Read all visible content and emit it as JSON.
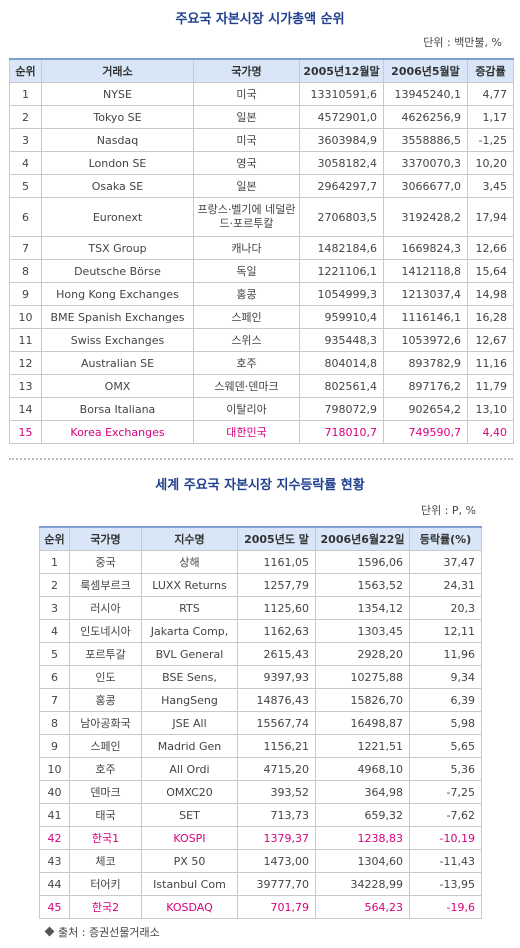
{
  "section1": {
    "title": "주요국 자본시장 시가총액 순위",
    "unit": "단위 : 백만불, %",
    "headers": [
      "순위",
      "거래소",
      "국가명",
      "2005년12월말",
      "2006년5월말",
      "증감률"
    ],
    "rows": [
      [
        "1",
        "NYSE",
        "미국",
        "13310591,6",
        "13945240,1",
        "4,77"
      ],
      [
        "2",
        "Tokyo SE",
        "일본",
        "4572901,0",
        "4626256,9",
        "1,17"
      ],
      [
        "3",
        "Nasdaq",
        "미국",
        "3603984,9",
        "3558886,5",
        "-1,25"
      ],
      [
        "4",
        "London SE",
        "영국",
        "3058182,4",
        "3370070,3",
        "10,20"
      ],
      [
        "5",
        "Osaka SE",
        "일본",
        "2964297,7",
        "3066677,0",
        "3,45"
      ],
      [
        "6",
        "Euronext",
        "프랑스·벨기에 네덜란드·포르투칼",
        "2706803,5",
        "3192428,2",
        "17,94"
      ],
      [
        "7",
        "TSX Group",
        "캐나다",
        "1482184,6",
        "1669824,3",
        "12,66"
      ],
      [
        "8",
        "Deutsche Börse",
        "독일",
        "1221106,1",
        "1412118,8",
        "15,64"
      ],
      [
        "9",
        "Hong Kong Exchanges",
        "홍콩",
        "1054999,3",
        "1213037,4",
        "14,98"
      ],
      [
        "10",
        "BME Spanish Exchanges",
        "스페인",
        "959910,4",
        "1116146,1",
        "16,28"
      ],
      [
        "11",
        "Swiss Exchanges",
        "스위스",
        "935448,3",
        "1053972,6",
        "12,67"
      ],
      [
        "12",
        "Australian SE",
        "호주",
        "804014,8",
        "893782,9",
        "11,16"
      ],
      [
        "13",
        "OMX",
        "스웨덴·덴마크",
        "802561,4",
        "897176,2",
        "11,79"
      ],
      [
        "14",
        "Borsa Italiana",
        "이탈리아",
        "798072,9",
        "902654,2",
        "13,10"
      ],
      [
        "15",
        "Korea Exchanges",
        "대한민국",
        "718010,7",
        "749590,7",
        "4,40"
      ]
    ]
  },
  "section2": {
    "title": "세계 주요국 자본시장 지수등락률 현황",
    "unit": "단위 : P, %",
    "headers": [
      "순위",
      "국가명",
      "지수명",
      "2005년도 말",
      "2006년6월22일",
      "등락률(%)"
    ],
    "rows": [
      [
        "1",
        "중국",
        "상해",
        "1161,05",
        "1596,06",
        "37,47"
      ],
      [
        "2",
        "룩셈부르크",
        "LUXX Returns",
        "1257,79",
        "1563,52",
        "24,31"
      ],
      [
        "3",
        "러시아",
        "RTS",
        "1125,60",
        "1354,12",
        "20,3"
      ],
      [
        "4",
        "인도네시아",
        "Jakarta Comp,",
        "1162,63",
        "1303,45",
        "12,11"
      ],
      [
        "5",
        "포르투갈",
        "BVL General",
        "2615,43",
        "2928,20",
        "11,96"
      ],
      [
        "6",
        "인도",
        "BSE Sens,",
        "9397,93",
        "10275,88",
        "9,34"
      ],
      [
        "7",
        "홍콩",
        "HangSeng",
        "14876,43",
        "15826,70",
        "6,39"
      ],
      [
        "8",
        "남아공화국",
        "JSE All",
        "15567,74",
        "16498,87",
        "5,98"
      ],
      [
        "9",
        "스페인",
        "Madrid Gen",
        "1156,21",
        "1221,51",
        "5,65"
      ],
      [
        "10",
        "호주",
        "All Ordi",
        "4715,20",
        "4968,10",
        "5,36"
      ],
      [
        "40",
        "덴마크",
        "OMXC20",
        "393,52",
        "364,98",
        "-7,25"
      ],
      [
        "41",
        "태국",
        "SET",
        "713,73",
        "659,32",
        "-7,62"
      ],
      [
        "42",
        "한국1",
        "KOSPI",
        "1379,37",
        "1238,83",
        "-10,19"
      ],
      [
        "43",
        "체코",
        "PX 50",
        "1473,00",
        "1304,60",
        "-11,43"
      ],
      [
        "44",
        "터어키",
        "Istanbul Com",
        "39777,70",
        "34228,99",
        "-13,95"
      ],
      [
        "45",
        "한국2",
        "KOSDAQ",
        "701,79",
        "564,23",
        "-19,6"
      ]
    ]
  },
  "source": "출처 : 증권선물거래소",
  "colors": {
    "title": "#1f3f8f",
    "header_bg": "#d8e6f7",
    "highlight": "#d8007f"
  }
}
